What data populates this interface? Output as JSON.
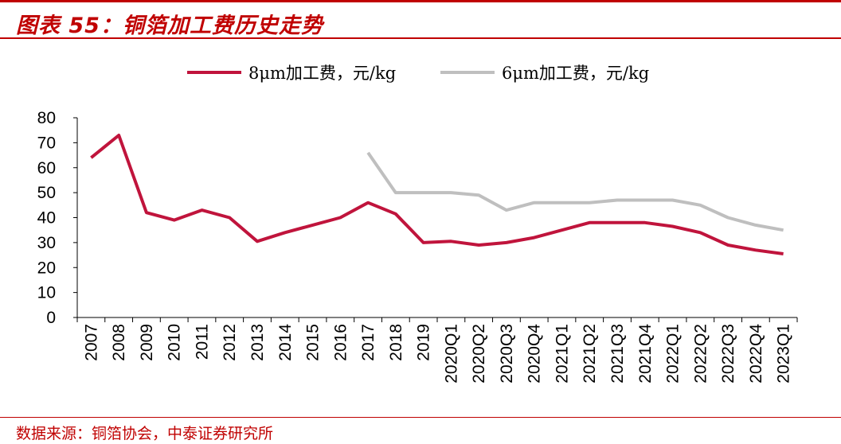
{
  "page": {
    "title": "图表 55：铜箔加工费历史走势",
    "source": "数据来源：铜箔协会，中泰证券研究所"
  },
  "colors": {
    "accent": "#c00000",
    "series_8um": "#c0143c",
    "series_6um": "#bfbfbf"
  },
  "chart_data": {
    "type": "line",
    "title": "",
    "xlabel": "",
    "ylabel": "",
    "ylim": [
      0,
      80
    ],
    "yticks": [
      "0",
      "10",
      "20",
      "30",
      "40",
      "50",
      "60",
      "70",
      "80"
    ],
    "grid": false,
    "legend_position": "top",
    "categories": [
      "2007",
      "2008",
      "2009",
      "2010",
      "2011",
      "2012",
      "2013",
      "2014",
      "2015",
      "2016",
      "2017",
      "2018",
      "2019",
      "2020Q1",
      "2020Q2",
      "2020Q3",
      "2020Q4",
      "2021Q1",
      "2021Q2",
      "2021Q3",
      "2021Q4",
      "2022Q1",
      "2022Q2",
      "2022Q3",
      "2022Q4",
      "2023Q1"
    ],
    "series": [
      {
        "name": "8μm加工费，元/kg",
        "color": "#c0143c",
        "values": [
          64,
          73,
          42,
          39,
          43,
          40,
          30.5,
          34,
          37,
          40,
          46,
          41.5,
          30,
          30.5,
          29,
          30,
          32,
          35,
          38,
          38,
          38,
          36.5,
          34,
          29,
          27,
          25.5
        ]
      },
      {
        "name": "6μm加工费，元/kg",
        "color": "#bfbfbf",
        "values": [
          null,
          null,
          null,
          null,
          null,
          null,
          null,
          null,
          null,
          null,
          66,
          50,
          50,
          50,
          49,
          43,
          46,
          46,
          46,
          47,
          47,
          47,
          45,
          40,
          37,
          35
        ]
      }
    ]
  }
}
